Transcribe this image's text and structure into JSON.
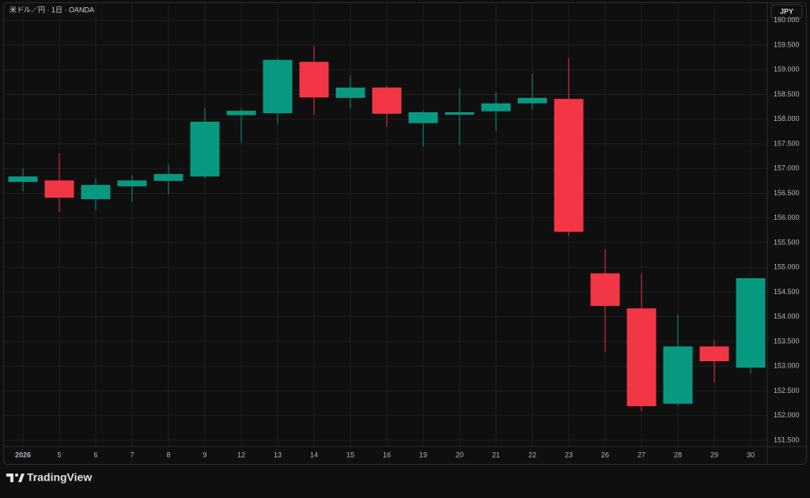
{
  "chart_data": {
    "type": "candlestick",
    "title": "米ドル／円 · 1日 · OANDA",
    "categories": [
      "2026",
      "5",
      "6",
      "7",
      "8",
      "9",
      "12",
      "13",
      "14",
      "15",
      "16",
      "19",
      "20",
      "21",
      "22",
      "23",
      "26",
      "27",
      "28",
      "29",
      "30"
    ],
    "open": [
      156.73,
      156.76,
      156.38,
      156.64,
      156.75,
      156.84,
      158.08,
      158.12,
      159.16,
      158.43,
      158.64,
      157.92,
      158.09,
      158.16,
      158.32,
      158.41,
      154.88,
      154.17,
      152.24,
      153.4,
      152.97
    ],
    "high": [
      157.0,
      157.31,
      156.8,
      156.86,
      157.08,
      158.22,
      158.22,
      159.23,
      159.48,
      158.89,
      158.68,
      158.17,
      158.62,
      158.54,
      158.91,
      159.24,
      155.36,
      154.88,
      154.04,
      153.52,
      154.78
    ],
    "low": [
      156.54,
      156.12,
      156.16,
      156.32,
      156.48,
      156.8,
      157.52,
      157.9,
      158.09,
      158.22,
      157.85,
      157.44,
      157.47,
      157.76,
      158.2,
      155.63,
      153.29,
      152.09,
      152.2,
      152.67,
      152.86
    ],
    "close": [
      156.84,
      156.41,
      156.67,
      156.76,
      156.89,
      157.95,
      158.17,
      159.2,
      158.44,
      158.64,
      158.11,
      158.14,
      158.14,
      158.32,
      158.43,
      155.72,
      154.22,
      152.19,
      153.4,
      153.1,
      154.78
    ],
    "up_color": "#089981",
    "down_color": "#f23645",
    "ylim": [
      151.372,
      160.332
    ],
    "yticks": [
      {
        "value": 151.5,
        "label": "151.500"
      },
      {
        "value": 152,
        "label": "152.000"
      },
      {
        "value": 152.5,
        "label": "152.500"
      },
      {
        "value": 153,
        "label": "153.000"
      },
      {
        "value": 153.5,
        "label": "153.500"
      },
      {
        "value": 154,
        "label": "154.000"
      },
      {
        "value": 154.5,
        "label": "154.500"
      },
      {
        "value": 155,
        "label": "155.000"
      },
      {
        "value": 155.5,
        "label": "155.500"
      },
      {
        "value": 156,
        "label": "156.000"
      },
      {
        "value": 156.5,
        "label": "156.500"
      },
      {
        "value": 157,
        "label": "157.000"
      },
      {
        "value": 157.5,
        "label": "157.500"
      },
      {
        "value": 158,
        "label": "158.000"
      },
      {
        "value": 158.5,
        "label": "158.500"
      },
      {
        "value": 159,
        "label": "159.000"
      },
      {
        "value": 159.5,
        "label": "159.500"
      },
      {
        "value": 160,
        "label": "160.000"
      }
    ],
    "grid": true
  },
  "currency_button": "JPY",
  "brand": "TradingView"
}
